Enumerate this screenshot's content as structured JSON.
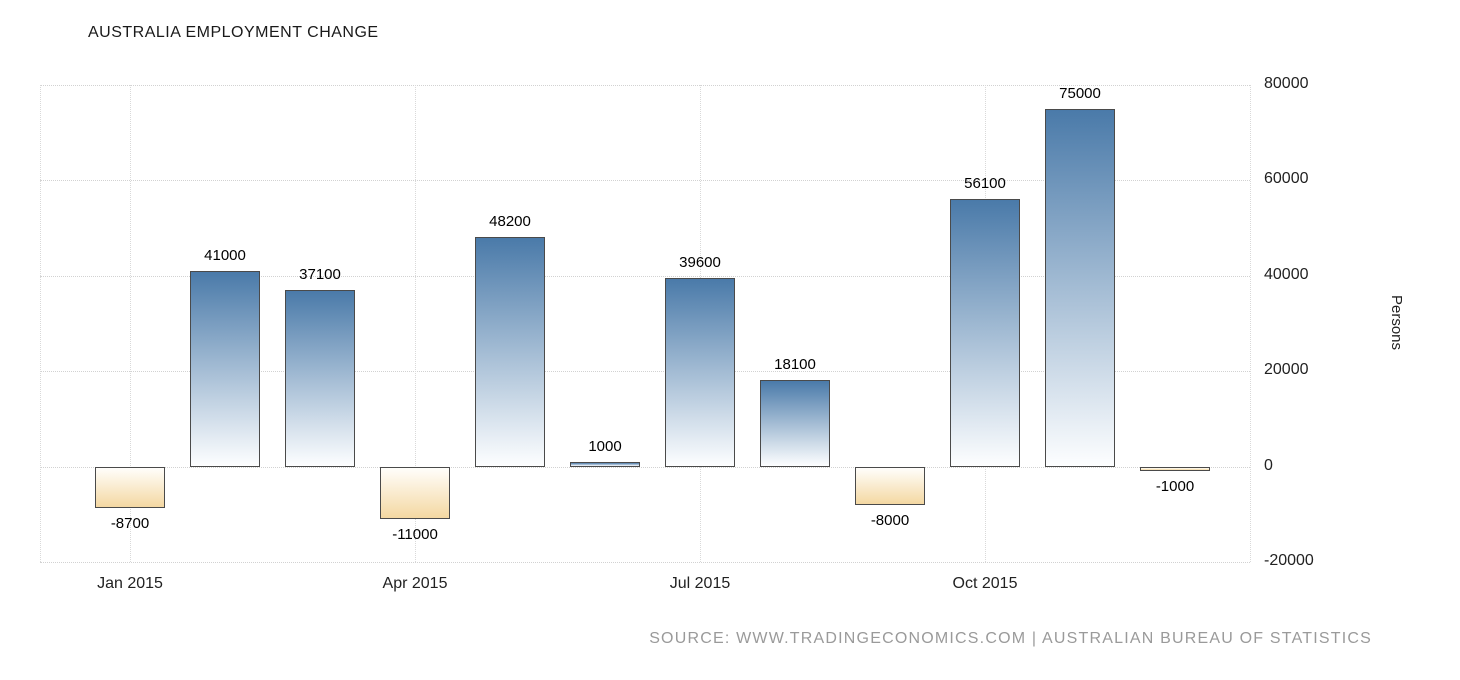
{
  "chart_data": {
    "type": "bar",
    "title": "AUSTRALIA EMPLOYMENT CHANGE",
    "ylabel": "Persons",
    "xlabel": "",
    "source": "SOURCE: WWW.TRADINGECONOMICS.COM | AUSTRALIAN BUREAU OF STATISTICS",
    "ylim": [
      -20000,
      80000
    ],
    "yticks": [
      80000,
      60000,
      40000,
      20000,
      0,
      -20000
    ],
    "grid": true,
    "legend": false,
    "x": [
      "Jan 2015",
      "Feb 2015",
      "Mar 2015",
      "Apr 2015",
      "May 2015",
      "Jun 2015",
      "Jul 2015",
      "Aug 2015",
      "Sep 2015",
      "Oct 2015",
      "Nov 2015",
      "Dec 2015"
    ],
    "values": [
      -8700,
      41000,
      37100,
      -11000,
      48200,
      1000,
      39600,
      18100,
      -8000,
      56100,
      75000,
      -1000
    ],
    "bar_labels": [
      "-8700",
      "41000",
      "37100",
      "-11000",
      "48200",
      "1000",
      "39600",
      "18100",
      "-8000",
      "56100",
      "75000",
      "-1000"
    ],
    "xticks": [
      {
        "index": 0,
        "label": "Jan 2015"
      },
      {
        "index": 3,
        "label": "Apr 2015"
      },
      {
        "index": 6,
        "label": "Jul 2015"
      },
      {
        "index": 9,
        "label": "Oct 2015"
      }
    ],
    "colors": {
      "positive_top": "#4a7aa9",
      "positive_bottom": "#fdfeff",
      "negative_top": "#fffefb",
      "negative_bottom": "#f4d8a2",
      "bar_border": "#4a4a4a",
      "grid": "#d2d2d2",
      "title": "#1a1a1a",
      "tick": "#222222",
      "source": "#9a9a9a"
    }
  }
}
